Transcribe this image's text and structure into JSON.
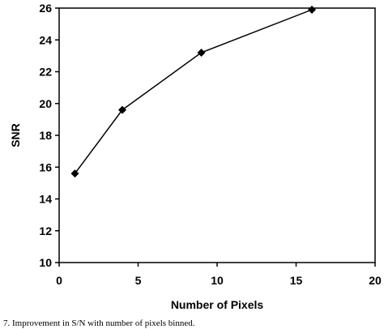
{
  "chart_data": {
    "type": "line",
    "title": "",
    "xlabel": "Number of Pixels",
    "ylabel": "SNR",
    "xlim": [
      0,
      20
    ],
    "ylim": [
      10,
      26
    ],
    "xticks": [
      0,
      5,
      10,
      15,
      20
    ],
    "yticks": [
      10,
      12,
      14,
      16,
      18,
      20,
      22,
      24,
      26
    ],
    "grid": false,
    "marker": "diamond",
    "series": [
      {
        "x": [
          1,
          4,
          9,
          16
        ],
        "y": [
          15.6,
          19.6,
          23.2,
          25.9
        ]
      }
    ]
  },
  "caption": "7. Improvement in S/N with number of pixels binned."
}
